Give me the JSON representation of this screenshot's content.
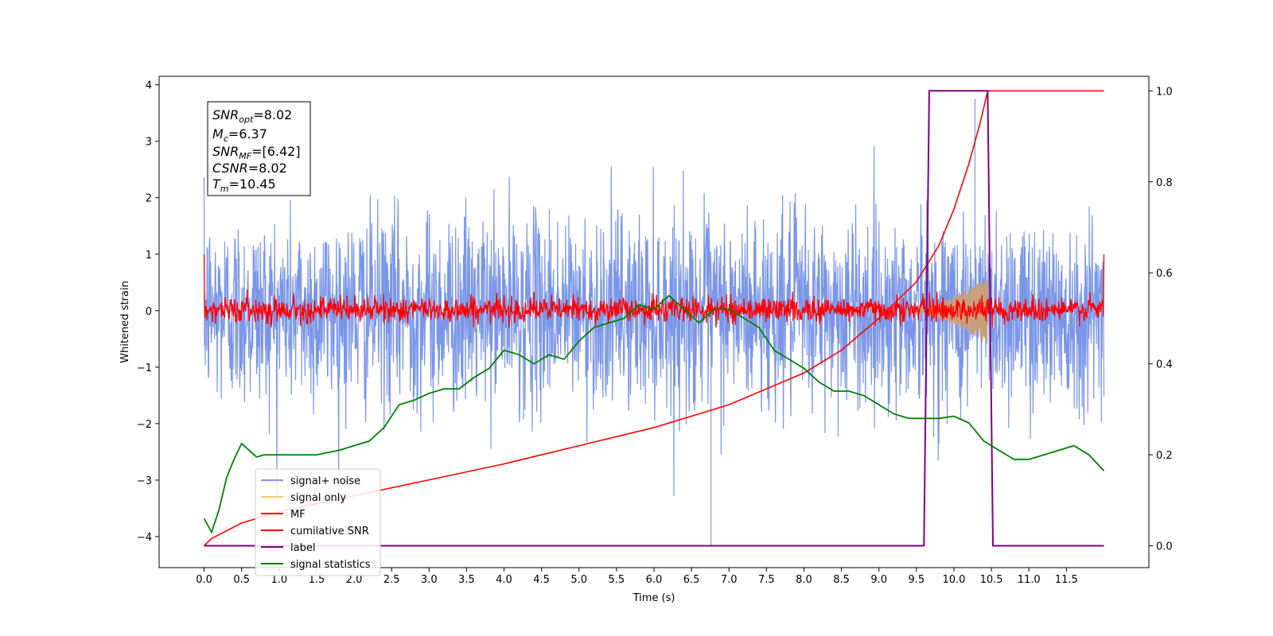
{
  "chart_data": {
    "type": "line",
    "xlabel": "Time (s)",
    "ylabel_left": "Whitened strain",
    "ylabel_right": "",
    "xlim": [
      -0.6,
      12.6
    ],
    "ylim_left": [
      -4.55,
      4.15
    ],
    "ylim_right": [
      -0.048,
      1.032
    ],
    "x_ticks": [
      "0.0",
      "0.5",
      "1.0",
      "1.5",
      "2.0",
      "2.5",
      "3.0",
      "3.5",
      "4.0",
      "4.5",
      "5.0",
      "5.5",
      "6.0",
      "6.5",
      "7.0",
      "7.5",
      "8.0",
      "8.5",
      "9.0",
      "9.5",
      "10.0",
      "10.5",
      "11.0",
      "11.5"
    ],
    "y_left_ticks": [
      "4",
      "3",
      "2",
      "1",
      "0",
      "−1",
      "−2",
      "−3",
      "−4"
    ],
    "y_right_ticks": [
      "1.0",
      "0.8",
      "0.6",
      "0.4",
      "0.2",
      "0.0"
    ],
    "annotation": {
      "snr_opt_label": "SNR",
      "snr_opt_sub": "opt",
      "snr_opt_value": "=8.02",
      "mc_label": "M",
      "mc_sub": "c",
      "mc_value": "=6.37",
      "snr_mf_label": "SNR",
      "snr_mf_sub": "MF",
      "snr_mf_value": "=[6.42]",
      "csnr_label": "CSNR",
      "csnr_value": "=8.02",
      "tm_label": "T",
      "tm_sub": "m",
      "tm_value": "=10.45"
    },
    "legend": {
      "placement": "lower-left",
      "entries": [
        "signal+ noise",
        "signal only",
        "MF",
        "cumilative SNR",
        "label",
        "signal statistics"
      ]
    },
    "colors": {
      "signal_noise": "#7b96e8",
      "signal_only": "#f5c97a",
      "signal_only_fill": "#c9a07a",
      "mf": "#ff0000",
      "cumulative_snr": "#ff0000",
      "label": "#800080",
      "signal_statistics": "#008000"
    },
    "series": [
      {
        "name": "signal+ noise",
        "axis": "left",
        "description_stats": {
          "x_range": [
            0.0,
            12.0
          ],
          "mean": 0.0,
          "typical_band": [
            -1.6,
            2.0
          ],
          "extreme_min": -4.15,
          "extreme_max": 3.75
        }
      },
      {
        "name": "signal only",
        "axis": "left",
        "chirp": {
          "x_start": 9.3,
          "x_end": 10.45,
          "max_amplitude": 0.6
        }
      },
      {
        "name": "MF",
        "axis": "left",
        "description_stats": {
          "x_range": [
            0.0,
            12.0
          ],
          "mean": 0.0,
          "typical_band": [
            -0.25,
            0.35
          ],
          "start_value": 1.0,
          "end_value": 1.0
        }
      },
      {
        "name": "cumilative SNR",
        "axis": "right",
        "x": [
          0.0,
          0.1,
          0.5,
          1.0,
          2.0,
          3.0,
          4.0,
          5.0,
          6.0,
          7.0,
          8.0,
          8.5,
          9.0,
          9.5,
          9.8,
          10.0,
          10.2,
          10.35,
          10.45,
          12.0
        ],
        "values": [
          0.0,
          0.016,
          0.05,
          0.075,
          0.11,
          0.145,
          0.18,
          0.22,
          0.26,
          0.31,
          0.38,
          0.43,
          0.5,
          0.58,
          0.66,
          0.74,
          0.84,
          0.93,
          1.0,
          1.0
        ]
      },
      {
        "name": "label",
        "axis": "right",
        "x": [
          0.0,
          9.6,
          9.67,
          10.45,
          10.52,
          12.0
        ],
        "values": [
          0.0,
          0.0,
          1.0,
          1.0,
          0.0,
          0.0
        ]
      },
      {
        "name": "signal statistics",
        "axis": "right",
        "x": [
          0.0,
          0.1,
          0.2,
          0.3,
          0.4,
          0.5,
          0.6,
          0.7,
          0.8,
          1.0,
          1.2,
          1.5,
          1.8,
          2.0,
          2.2,
          2.4,
          2.6,
          2.8,
          3.0,
          3.2,
          3.4,
          3.6,
          3.8,
          4.0,
          4.2,
          4.4,
          4.6,
          4.8,
          5.0,
          5.2,
          5.4,
          5.6,
          5.8,
          6.0,
          6.2,
          6.4,
          6.6,
          6.8,
          7.0,
          7.2,
          7.4,
          7.6,
          7.8,
          8.0,
          8.2,
          8.4,
          8.6,
          8.8,
          9.0,
          9.2,
          9.4,
          9.6,
          9.8,
          10.0,
          10.2,
          10.4,
          10.6,
          10.8,
          11.0,
          11.2,
          11.4,
          11.6,
          11.8,
          12.0
        ],
        "values": [
          0.06,
          0.03,
          0.08,
          0.15,
          0.19,
          0.225,
          0.21,
          0.195,
          0.2,
          0.2,
          0.2,
          0.2,
          0.21,
          0.22,
          0.23,
          0.26,
          0.31,
          0.32,
          0.335,
          0.345,
          0.345,
          0.37,
          0.39,
          0.43,
          0.42,
          0.4,
          0.42,
          0.41,
          0.45,
          0.48,
          0.49,
          0.5,
          0.53,
          0.52,
          0.55,
          0.52,
          0.49,
          0.52,
          0.52,
          0.5,
          0.48,
          0.43,
          0.41,
          0.39,
          0.36,
          0.34,
          0.34,
          0.33,
          0.31,
          0.29,
          0.28,
          0.28,
          0.28,
          0.285,
          0.27,
          0.23,
          0.21,
          0.19,
          0.19,
          0.2,
          0.21,
          0.22,
          0.2,
          0.165
        ]
      }
    ]
  }
}
